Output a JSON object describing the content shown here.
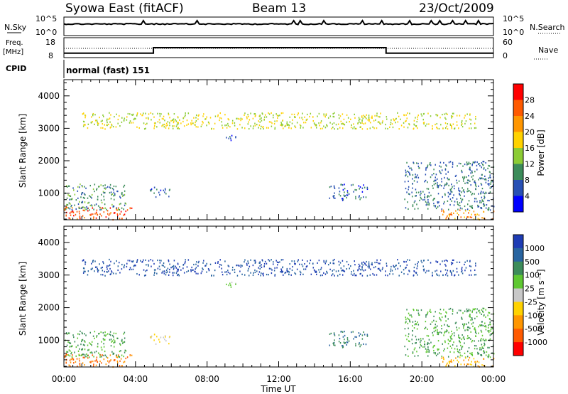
{
  "header": {
    "station": "Syowa East (fitACF)",
    "beam": "Beam 13",
    "date": "23/Oct/2009"
  },
  "sky_panel": {
    "left_label": "N.Sky",
    "right_label": "N.Search",
    "left_ticks": [
      "10^5",
      "10^0"
    ],
    "right_ticks": [
      "10^5",
      "10^0"
    ]
  },
  "freq_panel": {
    "left_label_line1": "Freq.",
    "left_label_line2": "[MHz]",
    "cpid_label": "CPID",
    "right_label": "Nave",
    "left_ticks": [
      "18",
      "8"
    ],
    "right_ticks": [
      "60",
      "0"
    ]
  },
  "mode_text": "normal (fast) 151",
  "power_colorbar": {
    "label": "Power [dB]",
    "ticks": [
      "28",
      "24",
      "20",
      "16",
      "12",
      "8",
      "4"
    ],
    "colors": [
      "#ff0000",
      "#ff5a00",
      "#ff9600",
      "#ffd200",
      "#8ccc34",
      "#3c8c5a",
      "#2850b4",
      "#0000ff"
    ]
  },
  "velocity_colorbar": {
    "label": "Velocity [m s⁻¹]",
    "ticks": [
      "1000",
      "500",
      "100",
      "25",
      "-25",
      "-100",
      "-500",
      "-1000"
    ],
    "colors": [
      "#1e3cb4",
      "#2864a0",
      "#3c8c5a",
      "#5fc832",
      "#c8c8c8",
      "#ffd200",
      "#ff9600",
      "#ff5a00",
      "#ff0000"
    ]
  },
  "chart_data": {
    "type": "heatmap",
    "xlabel": "Time UT",
    "ylabel": "Slant Range [km]",
    "x_ticks": [
      "00:00",
      "04:00",
      "08:00",
      "12:00",
      "16:00",
      "20:00",
      "00:00"
    ],
    "y_ticks": [
      "1000",
      "2000",
      "3000",
      "4000"
    ],
    "xlim_hours": [
      0,
      24
    ],
    "ylim_km": [
      180,
      4500
    ],
    "panels": [
      "power",
      "velocity"
    ],
    "freq_steps_mhz": [
      [
        0,
        5,
        10
      ],
      [
        5,
        18,
        13
      ],
      [
        18,
        24,
        10
      ]
    ],
    "scatter_regions": [
      {
        "t0": 0.0,
        "t1": 3.8,
        "r0": 200,
        "r1": 600,
        "power_db": 26,
        "velocity": -500
      },
      {
        "t0": 0.0,
        "t1": 3.5,
        "r0": 500,
        "r1": 1300,
        "power_db": 10,
        "velocity": 100
      },
      {
        "t0": 4.8,
        "t1": 6.0,
        "r0": 900,
        "r1": 1200,
        "power_db": 7,
        "velocity": -25
      },
      {
        "t0": 9.0,
        "t1": 9.7,
        "r0": 2600,
        "r1": 2800,
        "power_db": 5,
        "velocity": 25
      },
      {
        "t0": 14.8,
        "t1": 17.0,
        "r0": 800,
        "r1": 1300,
        "power_db": 7,
        "velocity": 500
      },
      {
        "t0": 19.0,
        "t1": 24.0,
        "r0": 500,
        "r1": 2000,
        "power_db": 8,
        "velocity": 100
      },
      {
        "t0": 21.0,
        "t1": 24.0,
        "r0": 200,
        "r1": 500,
        "power_db": 22,
        "velocity": -100
      },
      {
        "t0": 1.0,
        "t1": 23.0,
        "r0": 3000,
        "r1": 3500,
        "power_db": 16,
        "velocity": 1000
      }
    ]
  }
}
